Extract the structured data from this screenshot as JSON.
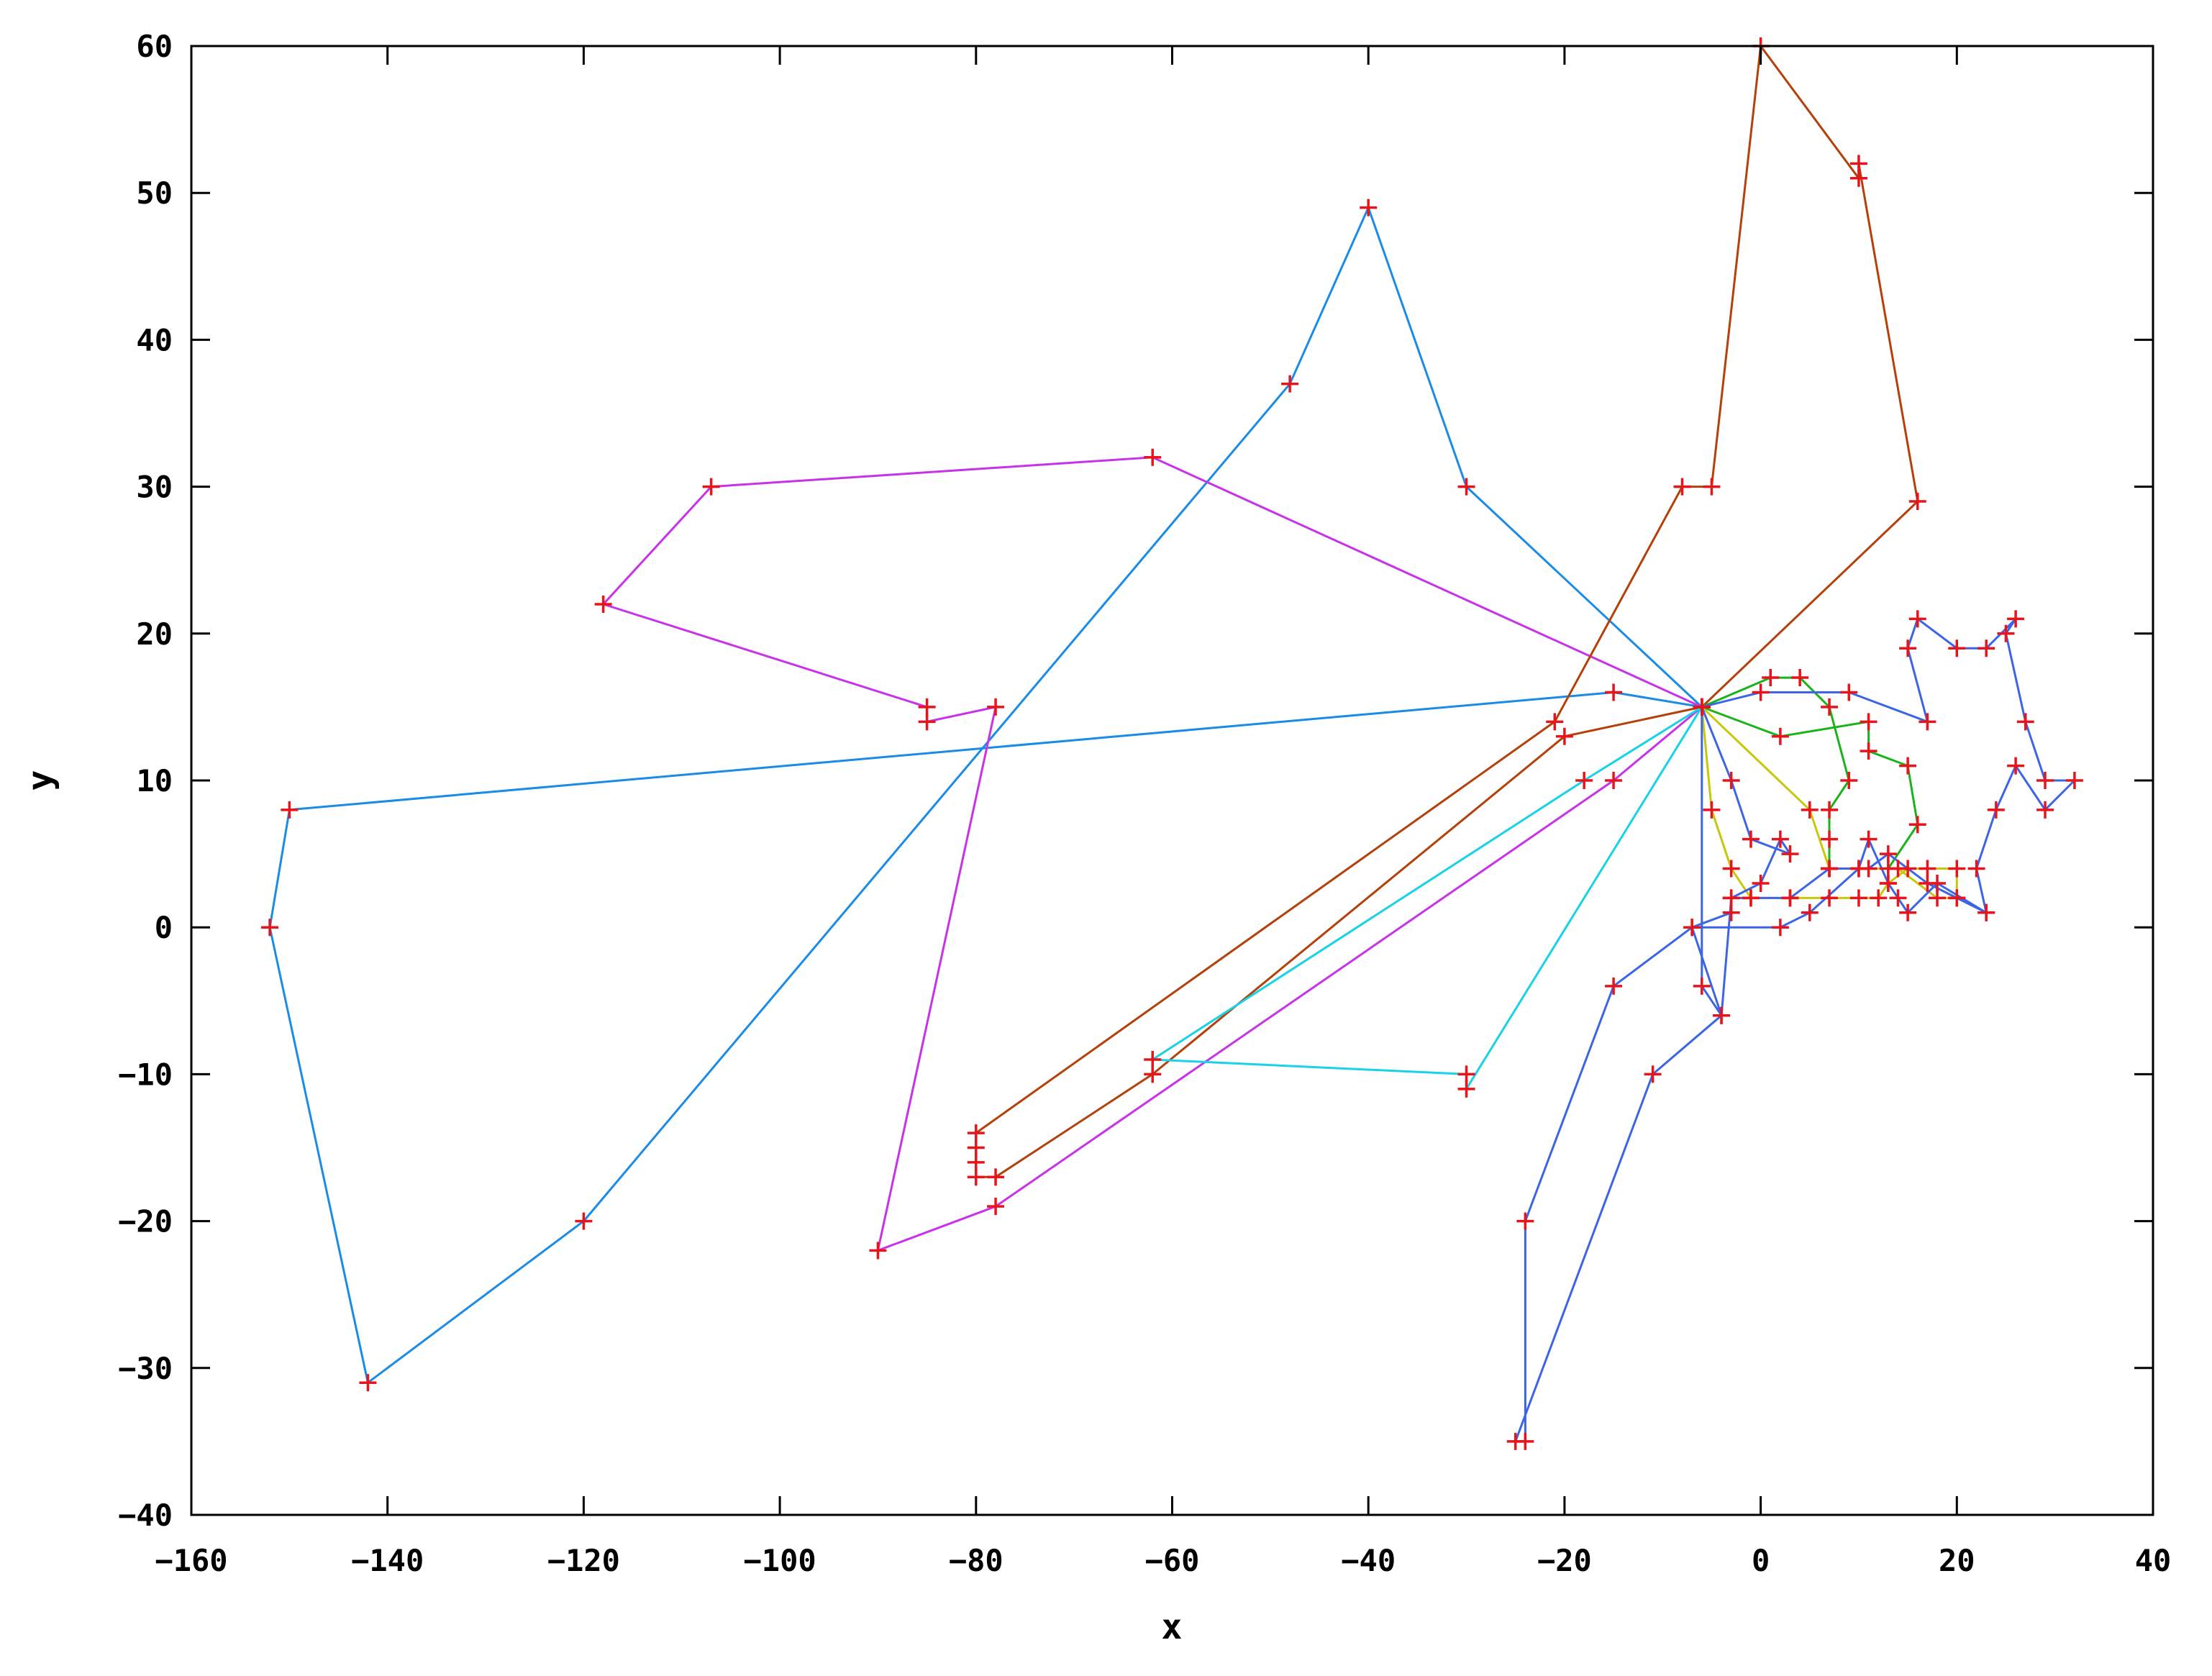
{
  "chart_data": {
    "type": "line",
    "xlabel": "x",
    "ylabel": "y",
    "xlim": [
      -160,
      40
    ],
    "ylim": [
      -40,
      60
    ],
    "xticks": [
      -160,
      -140,
      -120,
      -100,
      -80,
      -60,
      -40,
      -20,
      0,
      20,
      40
    ],
    "yticks": [
      -40,
      -30,
      -20,
      -10,
      0,
      10,
      20,
      30,
      40,
      50,
      60
    ],
    "grid": false,
    "legend": "none",
    "point_marker": "plus",
    "marker_color": "#e8141c",
    "series": [
      {
        "color": "#1a8ce8",
        "points": [
          [
            -6,
            15
          ],
          [
            -15,
            16
          ],
          [
            -150,
            8
          ],
          [
            -152,
            0
          ],
          [
            -142,
            -31
          ],
          [
            -120,
            -20
          ],
          [
            -48,
            37
          ],
          [
            -40,
            49
          ],
          [
            -30,
            30
          ],
          [
            -6,
            15
          ]
        ]
      },
      {
        "color": "#c832e8",
        "points": [
          [
            -6,
            15
          ],
          [
            -62,
            32
          ],
          [
            -107,
            30
          ],
          [
            -118,
            22
          ],
          [
            -85,
            15
          ],
          [
            -85,
            14
          ],
          [
            -78,
            15
          ],
          [
            -90,
            -22
          ],
          [
            -78,
            -19
          ],
          [
            -15,
            10
          ],
          [
            -6,
            15
          ]
        ]
      },
      {
        "color": "#b4400a",
        "points": [
          [
            -6,
            15
          ],
          [
            16,
            29
          ],
          [
            10,
            52
          ],
          [
            10,
            51
          ],
          [
            0,
            60
          ],
          [
            -5,
            30
          ],
          [
            -8,
            30
          ],
          [
            -21,
            14
          ],
          [
            -80,
            -14
          ],
          [
            -80,
            -15
          ],
          [
            -80,
            -16
          ],
          [
            -80,
            -17
          ],
          [
            -78,
            -17
          ],
          [
            -62,
            -10
          ],
          [
            -20,
            13
          ],
          [
            -6,
            15
          ]
        ]
      },
      {
        "color": "#19d2e6",
        "points": [
          [
            -6,
            15
          ],
          [
            -30,
            -11
          ],
          [
            -30,
            -10
          ],
          [
            -62,
            -9
          ],
          [
            -18,
            10
          ],
          [
            -6,
            15
          ]
        ]
      },
      {
        "color": "#19b419",
        "points": [
          [
            -6,
            15
          ],
          [
            1,
            17
          ],
          [
            4,
            17
          ],
          [
            7,
            15
          ],
          [
            9,
            10
          ],
          [
            7,
            8
          ],
          [
            7,
            6
          ],
          [
            7,
            4
          ],
          [
            10,
            4
          ],
          [
            13,
            4
          ],
          [
            16,
            7
          ],
          [
            15,
            11
          ],
          [
            11,
            12
          ],
          [
            11,
            14
          ],
          [
            2,
            13
          ],
          [
            -6,
            15
          ]
        ]
      },
      {
        "color": "#c8c80a",
        "points": [
          [
            -6,
            15
          ],
          [
            -5,
            8
          ],
          [
            -3,
            4
          ],
          [
            -1,
            2
          ],
          [
            3,
            2
          ],
          [
            7,
            2
          ],
          [
            10,
            2
          ],
          [
            12,
            2
          ],
          [
            13,
            3
          ],
          [
            15,
            4
          ],
          [
            17,
            4
          ],
          [
            20,
            4
          ],
          [
            20,
            2
          ],
          [
            18,
            2
          ],
          [
            14,
            4
          ],
          [
            7,
            4
          ],
          [
            5,
            8
          ],
          [
            -6,
            15
          ]
        ]
      },
      {
        "color": "#3c64e6",
        "points": [
          [
            -6,
            15
          ],
          [
            0,
            16
          ],
          [
            9,
            16
          ],
          [
            17,
            14
          ],
          [
            15,
            19
          ],
          [
            16,
            21
          ],
          [
            20,
            19
          ],
          [
            23,
            19
          ],
          [
            26,
            21
          ],
          [
            25,
            20
          ],
          [
            27,
            14
          ],
          [
            29,
            10
          ],
          [
            32,
            10
          ],
          [
            29,
            8
          ],
          [
            26,
            11
          ],
          [
            24,
            8
          ],
          [
            22,
            4
          ],
          [
            23,
            1
          ],
          [
            18,
            3
          ],
          [
            15,
            1
          ],
          [
            14,
            2
          ],
          [
            13,
            3
          ],
          [
            11,
            6
          ],
          [
            10,
            4
          ],
          [
            5,
            1
          ],
          [
            2,
            0
          ],
          [
            -7,
            0
          ],
          [
            -3,
            1
          ],
          [
            -3,
            2
          ],
          [
            0,
            3
          ],
          [
            2,
            6
          ],
          [
            3,
            5
          ],
          [
            -1,
            6
          ],
          [
            -3,
            10
          ],
          [
            -6,
            15
          ],
          [
            -6,
            -4
          ],
          [
            -4,
            -6
          ],
          [
            -7,
            0
          ],
          [
            -15,
            -4
          ],
          [
            -24,
            -20
          ],
          [
            -24,
            -35
          ],
          [
            -25,
            -35
          ],
          [
            -11,
            -10
          ],
          [
            -4,
            -6
          ],
          [
            -3,
            2
          ],
          [
            -1,
            2
          ],
          [
            3,
            2
          ],
          [
            7,
            4
          ],
          [
            11,
            4
          ],
          [
            13,
            5
          ],
          [
            17,
            3
          ],
          [
            20,
            2
          ],
          [
            23,
            1
          ]
        ]
      }
    ]
  }
}
